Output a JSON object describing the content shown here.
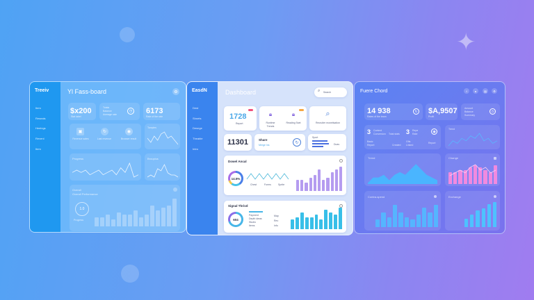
{
  "panels": {
    "p1": {
      "logo": "Treeiv",
      "title": "Yl Fass-board",
      "sidebar": [
        "Item",
        "Reseals",
        "Heeings",
        "Revenl",
        "Item"
      ],
      "stat1": {
        "value": "$x200",
        "sub": "Stat label"
      },
      "stat2": {
        "line1": "Totals",
        "line2": "Balance",
        "line3": "Average rate"
      },
      "stat3": {
        "value": "6173",
        "sub": "Rate of the rate"
      },
      "icons": [
        {
          "label": "Revenue sales"
        },
        {
          "label": "Last revenue"
        },
        {
          "label": "Browser result"
        }
      ],
      "small_chart_title": "Tamples",
      "line_title": "Progress",
      "small_line_title": "Brouplus",
      "bottom_title": "Overall",
      "bottom_subtitle": "Overall Performance",
      "donut_value": "1.0",
      "donut_label": "Progress",
      "small_line": [
        6,
        4,
        7,
        5,
        8,
        9,
        6,
        7,
        5,
        3
      ],
      "line": [
        5,
        6,
        5,
        6,
        4,
        5,
        6,
        4,
        5,
        6,
        4,
        7,
        5,
        9,
        3,
        4
      ],
      "tiny_line": [
        2,
        3,
        2,
        6,
        5,
        8,
        4,
        3,
        3,
        2
      ],
      "bars": [
        4,
        4,
        5,
        3,
        6,
        5,
        5,
        7,
        4,
        5,
        9,
        7,
        8,
        9,
        12
      ]
    },
    "p2": {
      "logo": "EasdN",
      "title": "Dashboard",
      "search_placeholder": "Search",
      "sidebar": [
        "Dest",
        "Shnets",
        "Desnge",
        "Theable",
        "Intro"
      ],
      "card1": {
        "value": "1728",
        "sub": "Report"
      },
      "card2": {
        "label": "Runtime Trends"
      },
      "card3": {
        "label": "Reading Sset"
      },
      "card4": {
        "label": "Recruiter monetisation"
      },
      "card5": {
        "value": "11301"
      },
      "card6": {
        "title": "Share",
        "sub": "Merge Ins"
      },
      "card7": {
        "title": "Sport",
        "sub": "Dueu"
      },
      "chart1": {
        "title": "Dowel Ancal",
        "donut_value": "14.5%",
        "legend": [
          "Chest",
          "Forms",
          "Sprite"
        ],
        "bars": [
          4,
          4,
          3,
          5,
          6,
          8,
          4,
          5,
          7,
          8,
          9
        ],
        "wave": [
          3,
          5,
          3,
          5,
          3,
          5,
          3,
          5,
          3,
          5,
          3
        ]
      },
      "chart2": {
        "title": "Signal Thrivd",
        "donut_value": "604",
        "list": [
          "Payment",
          "Depth ideas",
          "Studio",
          "Items"
        ],
        "legend": [
          "Map",
          "Rev",
          "Info"
        ],
        "bars": [
          4,
          5,
          7,
          5,
          5,
          6,
          4,
          8,
          7,
          6,
          9
        ]
      },
      "accent": "#3a84ee"
    },
    "p3": {
      "logo": "Fuere Chord",
      "stat1": {
        "value": "14 938",
        "sub": "Rates of the team"
      },
      "stat2": {
        "value": "$A,9507",
        "sub": "Profit"
      },
      "stat3": {
        "line1": "Amount",
        "line2": "Balance",
        "line3": "Summary"
      },
      "mini1": {
        "num": "3",
        "title": "Context",
        "sub": "Conversion",
        "tag": "Total stats",
        "a": "Basic",
        "b": "Report",
        "c": "Created"
      },
      "mini2": {
        "num": "3",
        "title": "Repe",
        "sub": "Rate",
        "a": "Gfts",
        "b": "Linked",
        "c": "Report"
      },
      "line_title": "Trend",
      "area_title": "Trend",
      "pink_title": "Change",
      "bars1_title": "Contra-spend",
      "bars2_title": "Exchange",
      "line": [
        3,
        5,
        4,
        6,
        5,
        7,
        6,
        8,
        5,
        6,
        4,
        5
      ],
      "area": [
        3,
        5,
        5,
        6,
        4,
        6,
        7,
        6,
        8,
        10,
        8,
        6,
        5,
        4
      ],
      "pink_bars": [
        5,
        5,
        6,
        6,
        7,
        8,
        7,
        6,
        5,
        8
      ],
      "pink_line": [
        5,
        6,
        7,
        6,
        8,
        9,
        7,
        8,
        6,
        7
      ],
      "bars1": [
        3,
        6,
        4,
        9,
        6,
        4,
        3,
        5,
        8,
        6,
        9
      ],
      "bars2": [
        4,
        6,
        8,
        9,
        11,
        12
      ],
      "accent": "#ff8ad8"
    }
  }
}
